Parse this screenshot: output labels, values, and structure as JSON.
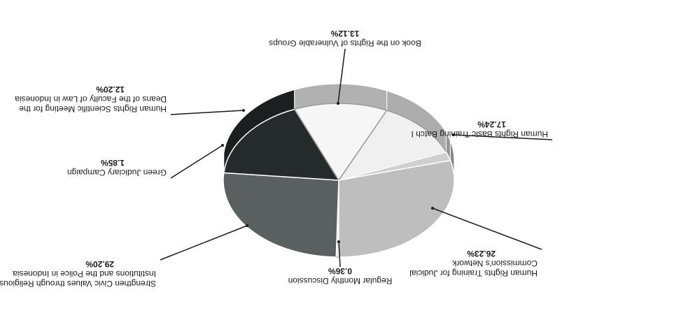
{
  "chart_data": {
    "type": "pie",
    "title": "",
    "slices": [
      {
        "label_lines": [
          "Regular Monthly Discussion"
        ],
        "pct_label": "0.36%",
        "value": 0.36,
        "color": "#f2f2f2"
      },
      {
        "label_lines": [
          "Human Rights Training for Judicial",
          "Commission's Network"
        ],
        "pct_label": "26.23%",
        "value": 26.23,
        "color": "#5a5f60"
      },
      {
        "label_lines": [
          "Human Rights Basic Training Batch I"
        ],
        "pct_label": "17.24%",
        "value": 17.24,
        "color": "#252b2b"
      },
      {
        "label_lines": [
          "Book on the Rights of Vulnerable Groups"
        ],
        "pct_label": "13.12%",
        "value": 13.12,
        "color": "#f6f6f6"
      },
      {
        "label_lines": [
          "Human Rights Scientific Meeting for the",
          "Deans of the Faculty of Law in Indonesia"
        ],
        "pct_label": "12.20%",
        "value": 12.2,
        "color": "#f0f0f0"
      },
      {
        "label_lines": [
          "Green Judiciary Campaign"
        ],
        "pct_label": "1.85%",
        "value": 1.85,
        "color": "#cfcfcf"
      },
      {
        "label_lines": [
          "Strengthen Civic Values through Religious",
          "Institutions and the Police in Indonesia"
        ],
        "pct_label": "29.20%",
        "value": 29.2,
        "color": "#bebebe"
      }
    ]
  }
}
